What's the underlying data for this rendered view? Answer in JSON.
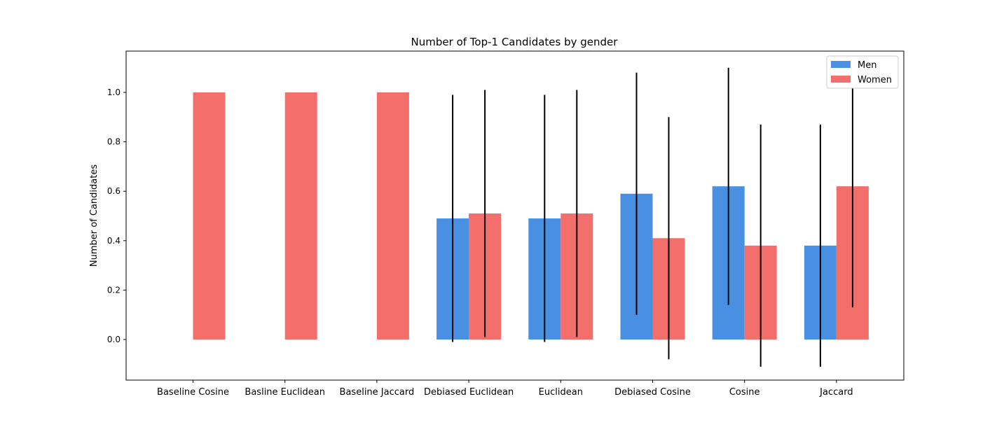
{
  "chart_data": {
    "type": "bar",
    "title": "Number of Top-1 Candidates by gender",
    "xlabel": "",
    "ylabel": "Number of Candidates",
    "ylim": [
      -0.17,
      1.17
    ],
    "yticks": [
      0.0,
      0.2,
      0.4,
      0.6,
      0.8,
      1.0
    ],
    "ytick_labels": [
      "0.0",
      "0.2",
      "0.4",
      "0.6",
      "0.8",
      "1.0"
    ],
    "grid": false,
    "legend_position": "top-right",
    "categories": [
      "Baseline Cosine",
      "Basline Euclidean",
      "Baseline Jaccard",
      "Debiased Euclidean",
      "Euclidean",
      "Debiased Cosine",
      "Cosine",
      "Jaccard"
    ],
    "series": [
      {
        "name": "Men",
        "color": "#4a90e2",
        "values": [
          0.0,
          0.0,
          0.0,
          0.49,
          0.49,
          0.59,
          0.62,
          0.38
        ],
        "errors": [
          null,
          null,
          null,
          0.5,
          0.5,
          0.49,
          0.48,
          0.49
        ]
      },
      {
        "name": "Women",
        "color": "#f26f6b",
        "values": [
          1.0,
          1.0,
          1.0,
          0.51,
          0.51,
          0.41,
          0.38,
          0.62
        ],
        "errors": [
          null,
          null,
          null,
          0.5,
          0.5,
          0.49,
          0.49,
          0.49
        ]
      }
    ]
  }
}
